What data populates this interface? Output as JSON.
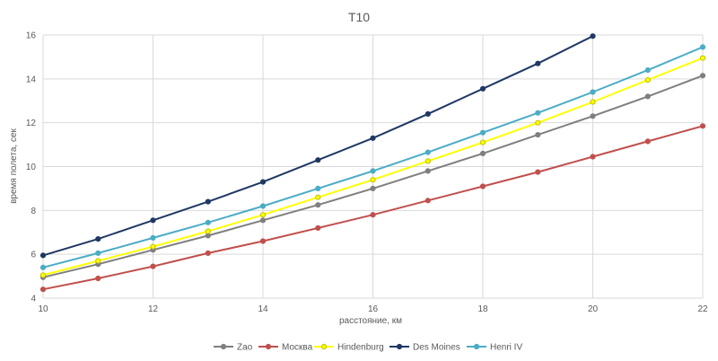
{
  "chart_data": {
    "type": "line",
    "title": "T10",
    "xlabel": "расстояние, км",
    "ylabel": "время полета, сек",
    "xlim": [
      10,
      22
    ],
    "ylim": [
      4,
      16
    ],
    "x_ticks": [
      10,
      12,
      14,
      16,
      18,
      20,
      22
    ],
    "y_ticks": [
      4,
      6,
      8,
      10,
      12,
      14,
      16
    ],
    "grid": true,
    "legend_position": "bottom",
    "x": [
      10,
      11,
      12,
      13,
      14,
      15,
      16,
      17,
      18,
      19,
      20,
      21,
      22
    ],
    "series": [
      {
        "name": "Zao",
        "color": "#7f7f7f",
        "marker_fill": "#7f7f7f",
        "values": [
          4.95,
          5.55,
          6.2,
          6.85,
          7.55,
          8.25,
          9.0,
          9.8,
          10.6,
          11.45,
          12.3,
          13.2,
          14.15
        ]
      },
      {
        "name": "Москва",
        "color": "#c0504d",
        "marker_fill": "#c0504d",
        "values": [
          4.4,
          4.9,
          5.45,
          6.05,
          6.6,
          7.2,
          7.8,
          8.45,
          9.1,
          9.75,
          10.45,
          11.15,
          11.85
        ]
      },
      {
        "name": "Hindenburg",
        "color": "#ffff00",
        "marker_fill": "#ffff00",
        "marker_stroke": "#bfbf00",
        "values": [
          5.05,
          5.7,
          6.35,
          7.05,
          7.8,
          8.6,
          9.4,
          10.25,
          11.1,
          12.0,
          12.95,
          13.95,
          14.95
        ]
      },
      {
        "name": "Des Moines",
        "color": "#1f3864",
        "marker_fill": "#1f3864",
        "values": [
          5.95,
          6.7,
          7.55,
          8.4,
          9.3,
          10.3,
          11.3,
          12.4,
          13.55,
          14.7,
          15.95,
          null,
          null
        ]
      },
      {
        "name": "Henri IV",
        "color": "#4bacc6",
        "marker_fill": "#4bacc6",
        "values": [
          5.4,
          6.05,
          6.75,
          7.45,
          8.2,
          9.0,
          9.8,
          10.65,
          11.55,
          12.45,
          13.4,
          14.4,
          15.45
        ]
      }
    ]
  }
}
